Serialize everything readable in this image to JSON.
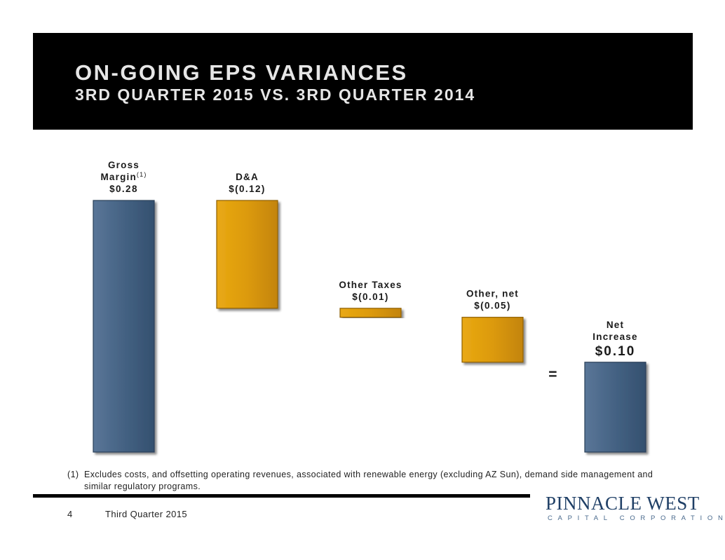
{
  "header": {
    "title": "ON-GOING EPS VARIANCES",
    "subtitle": "3RD QUARTER 2015 VS. 3RD QUARTER 2014"
  },
  "chart_data": {
    "type": "waterfall",
    "title": "ON-GOING EPS VARIANCES",
    "subtitle": "3RD QUARTER 2015 VS. 3RD QUARTER 2014",
    "unit": "$ per share",
    "bars": [
      {
        "label_lines": [
          "Gross",
          "Margin"
        ],
        "superscript": "(1)",
        "value": 0.28,
        "value_label": "$0.28",
        "kind": "increase"
      },
      {
        "label_lines": [
          "D&A"
        ],
        "value": -0.12,
        "value_label": "$(0.12)",
        "kind": "decrease"
      },
      {
        "label_lines": [
          "Other Taxes"
        ],
        "value": -0.01,
        "value_label": "$(0.01)",
        "kind": "decrease"
      },
      {
        "label_lines": [
          "Other, net"
        ],
        "value": -0.05,
        "value_label": "$(0.05)",
        "kind": "decrease"
      },
      {
        "label_lines": [
          "Net",
          "Increase"
        ],
        "value": 0.1,
        "value_label": "$0.10",
        "kind": "total"
      }
    ],
    "equals_sign": "=",
    "colors": {
      "increase": "#435f7f",
      "total": "#435f7f",
      "decrease": "#d9960a",
      "label": "#1a1a1a"
    }
  },
  "footnote": {
    "marker": "(1)",
    "line1": "Excludes costs, and offsetting operating revenues, associated with renewable energy (excluding AZ Sun), demand side management and",
    "line2": "similar regulatory programs."
  },
  "footer": {
    "page_number": "4",
    "period": "Third Quarter 2015"
  },
  "logo": {
    "name": "PINNACLE WEST",
    "subtitle": "CAPITAL CORPORATION"
  }
}
